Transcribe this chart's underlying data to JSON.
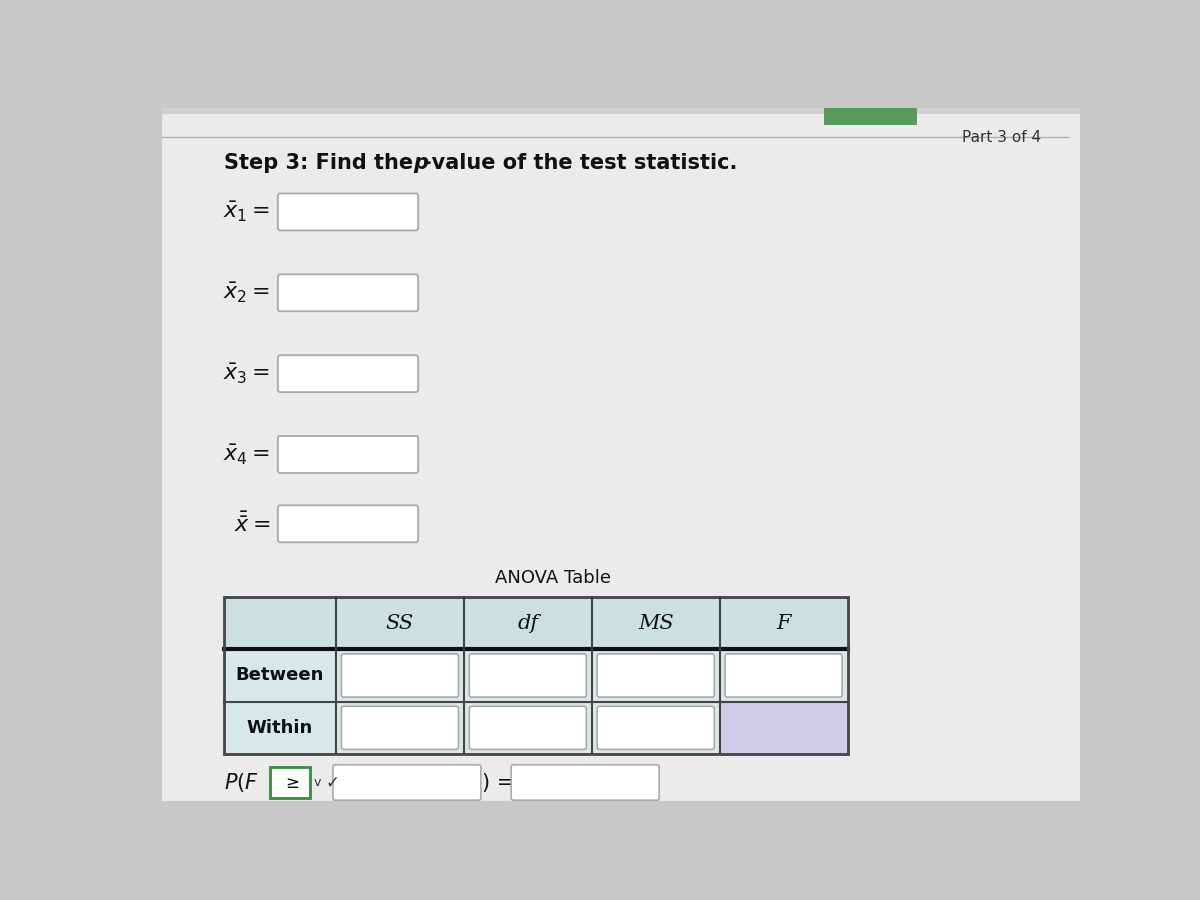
{
  "background_color": "#c8c8c8",
  "page_bg": "#e8e8e8",
  "title": "Step 3: Find the p-value of the test statistic.",
  "title_p_italic": "p",
  "part_label": "Part 3 of 4",
  "anova_title": "ANOVA Table",
  "anova_headers": [
    "SS",
    "df",
    "MS",
    "F"
  ],
  "anova_rows": [
    "Between",
    "Within"
  ],
  "input_box_color": "#ffffff",
  "input_box_border": "#aaaaaa",
  "header_bg": "#cce0e0",
  "row_bg": "#d8e8e8",
  "lavender_bg": "#d0cce8",
  "table_border_color": "#444444",
  "table_header_bottom_color": "#222222"
}
